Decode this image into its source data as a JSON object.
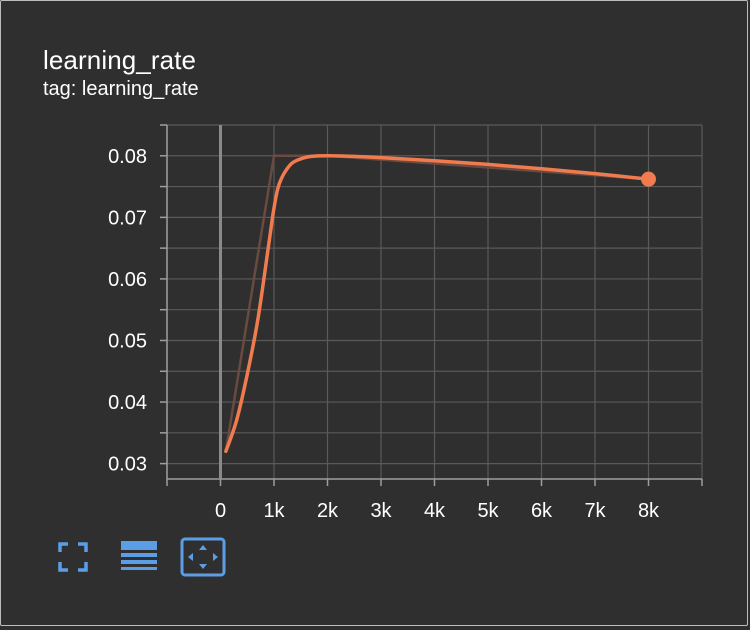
{
  "card": {
    "title": "learning_rate",
    "subtitle": "tag: learning_rate"
  },
  "colors": {
    "background": "#2f2f2f",
    "series": "#f07b4f",
    "raw_series": "#6b4a40",
    "grid": "#5a5a5a",
    "axis": "#9e9e9e",
    "toolbar": "#5c9ee6"
  },
  "toolbar": {
    "buttons": [
      {
        "icon": "fullscreen-icon"
      },
      {
        "icon": "data-table-icon"
      },
      {
        "icon": "fit-domain-icon"
      }
    ]
  },
  "chart_data": {
    "type": "line",
    "title": "learning_rate",
    "xlim": [
      -1000,
      9000
    ],
    "ylim": [
      0.0275,
      0.085
    ],
    "x_ticks": [
      0,
      1000,
      2000,
      3000,
      4000,
      5000,
      6000,
      7000,
      8000
    ],
    "x_tick_labels": [
      "0",
      "1k",
      "2k",
      "3k",
      "4k",
      "5k",
      "6k",
      "7k",
      "8k"
    ],
    "y_ticks": [
      0.03,
      0.04,
      0.05,
      0.06,
      0.07,
      0.08
    ],
    "y_tick_labels": [
      "0.03",
      "0.04",
      "0.05",
      "0.06",
      "0.07",
      "0.08"
    ],
    "grid": true,
    "series": [
      {
        "role": "raw",
        "x": [
          100,
          1000,
          1500,
          2000,
          8000
        ],
        "y": [
          0.032,
          0.08,
          0.08,
          0.08,
          0.0762
        ]
      },
      {
        "role": "smoothed",
        "x": [
          100,
          300,
          500,
          700,
          900,
          1000,
          1100,
          1300,
          1500,
          1700,
          2000,
          2500,
          3000,
          4000,
          5000,
          6000,
          7000,
          8000
        ],
        "y": [
          0.032,
          0.037,
          0.0445,
          0.0535,
          0.0655,
          0.0715,
          0.0755,
          0.0785,
          0.0795,
          0.0799,
          0.08,
          0.0799,
          0.0797,
          0.0792,
          0.0786,
          0.0779,
          0.0771,
          0.0762
        ]
      }
    ],
    "last_point": {
      "x": 8000,
      "y": 0.0762
    }
  }
}
